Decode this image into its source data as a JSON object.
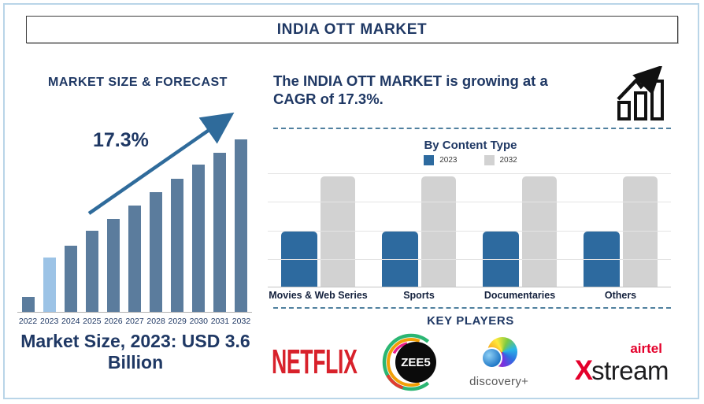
{
  "page": {
    "title": "INDIA OTT MARKET"
  },
  "left_panel": {
    "heading": "MARKET SIZE & FORECAST",
    "growth_label": "17.3%",
    "caption": "Market Size, 2023: USD 3.6 Billion"
  },
  "right_panel": {
    "headline": "The INDIA OTT MARKET is growing at a CAGR of 17.3%.",
    "key_players_heading": "KEY PLAYERS"
  },
  "players": {
    "netflix": "NETFLIX",
    "zee5": "ZEE5",
    "discovery": "discovery+",
    "airtel": "airtel",
    "xstream_x": "X",
    "xstream_rest": "stream"
  },
  "colors": {
    "navy": "#1f3864",
    "bar_steel": "#5b7c9d",
    "bar_highlight": "#9cc3e6",
    "content_blue": "#2d6a9f",
    "content_gray": "#d2d2d2",
    "dashed_divider": "#50809f",
    "frame_blue": "#b9d5e8",
    "arrow_blue": "#2f6b9b",
    "netflix_red": "#d8212b",
    "airtel_red": "#e4002b"
  },
  "chart_data": [
    {
      "type": "bar",
      "title": "MARKET SIZE & FORECAST",
      "categories": [
        "2022",
        "2023",
        "2024",
        "2025",
        "2026",
        "2027",
        "2028",
        "2029",
        "2030",
        "2031",
        "2032"
      ],
      "values": [
        1.0,
        3.6,
        4.4,
        5.4,
        6.2,
        7.1,
        8.0,
        8.9,
        9.8,
        10.6,
        11.5
      ],
      "unit": "USD Billion (2023 labeled 3.6; others estimated from bar heights)",
      "annotation": "17.3%",
      "highlight_category": "2023",
      "bar_color": "#5b7c9d",
      "highlight_color": "#9cc3e6",
      "ylim": [
        0,
        11.5
      ],
      "grid": false,
      "legend_position": "none"
    },
    {
      "type": "bar",
      "title": "By Content Type",
      "categories": [
        "Movies & Web Series",
        "Sports",
        "Documentaries",
        "Others"
      ],
      "series": [
        {
          "name": "2023",
          "color": "#2d6a9f",
          "values": [
            2,
            2,
            2,
            2
          ]
        },
        {
          "name": "2032",
          "color": "#d2d2d2",
          "values": [
            4,
            4,
            4,
            4
          ]
        }
      ],
      "ylim": [
        0,
        4.1
      ],
      "grid": true,
      "legend_position": "top",
      "unit": "relative gridline units (no numeric axis shown)"
    }
  ]
}
